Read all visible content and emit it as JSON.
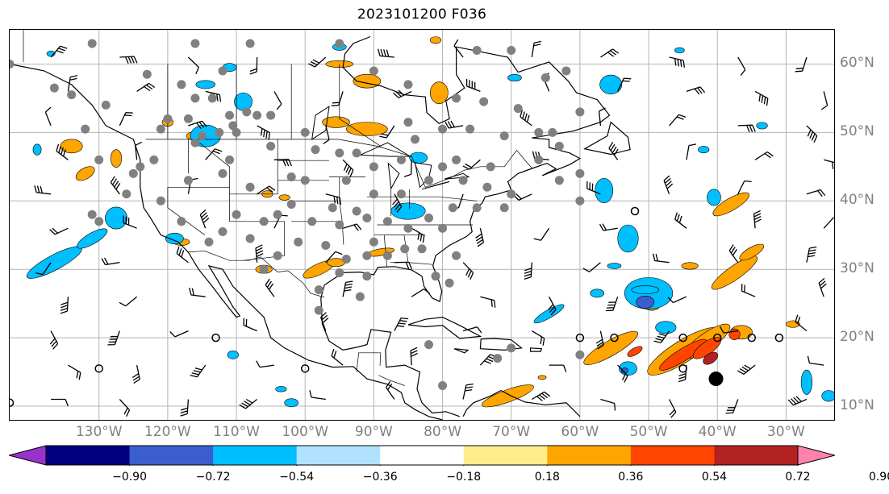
{
  "title": "2023101200 F036",
  "map": {
    "lon_range": [
      -143,
      -23
    ],
    "lat_range": [
      8,
      65
    ],
    "lon_ticks": [
      {
        "value": -130,
        "label": "130°W"
      },
      {
        "value": -120,
        "label": "120°W"
      },
      {
        "value": -110,
        "label": "110°W"
      },
      {
        "value": -100,
        "label": "100°W"
      },
      {
        "value": -90,
        "label": "90°W"
      },
      {
        "value": -80,
        "label": "80°W"
      },
      {
        "value": -70,
        "label": "70°W"
      },
      {
        "value": -60,
        "label": "60°W"
      },
      {
        "value": -50,
        "label": "50°W"
      },
      {
        "value": -40,
        "label": "40°W"
      },
      {
        "value": -30,
        "label": "30°W"
      }
    ],
    "lat_ticks": [
      {
        "value": 60,
        "label": "60°N"
      },
      {
        "value": 50,
        "label": "50°N"
      },
      {
        "value": 40,
        "label": "40°N"
      },
      {
        "value": 30,
        "label": "30°N"
      },
      {
        "value": 20,
        "label": "20°N"
      },
      {
        "value": 10,
        "label": "10°N"
      }
    ],
    "grid": true,
    "storm_marker": {
      "lon": -40.2,
      "lat": 14.0
    }
  },
  "colorbar": {
    "colors": [
      "#9932cc",
      "#000080",
      "#3a5fcd",
      "#00bfff",
      "#b0e2ff",
      "#ffffff",
      "#ffec8b",
      "#ffa500",
      "#ff4500",
      "#b22222",
      "#ff82ab"
    ],
    "ticks": [
      "−0.90",
      "−0.72",
      "−0.54",
      "−0.36",
      "−0.18",
      "0.18",
      "0.36",
      "0.54",
      "0.72",
      "0.90"
    ],
    "extend": "both"
  },
  "colors": {
    "positive": "#ffa500",
    "strong_positive": "#ff4500",
    "strongest_positive": "#b22222",
    "negative": "#00bfff",
    "strong_negative": "#3a5fcd",
    "station_dot": "#808080"
  }
}
